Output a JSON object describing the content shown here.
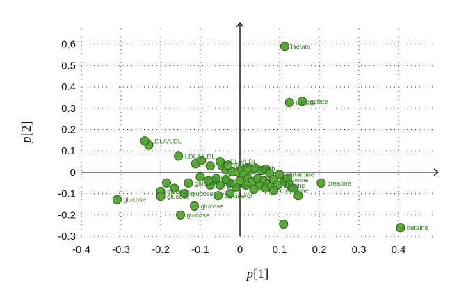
{
  "chart_data": {
    "type": "scatter",
    "xlabel": {
      "italic": "p",
      "bracket": "[1]"
    },
    "ylabel": {
      "italic": "p",
      "bracket": "[2]"
    },
    "xlim": [
      -0.4,
      0.5
    ],
    "ylim": [
      -0.3,
      0.7
    ],
    "x_ticks": [
      "-0.4",
      "-0.3",
      "-0.2",
      "-0.1",
      "0",
      "0.1",
      "0.2",
      "0.3",
      "0.4"
    ],
    "y_ticks": [
      "-0.3",
      "-0.2",
      "-0.1",
      "0",
      "0.1",
      "0.2",
      "0.3",
      "0.4",
      "0.5",
      "0.6"
    ],
    "grid": true,
    "point_color": "#5aa83a",
    "point_edge_color": "#2f6b1c",
    "label_color": "#2e7d1e",
    "labeled_points": [
      {
        "x": 0.113,
        "y": 0.59,
        "label": "lactate"
      },
      {
        "x": 0.157,
        "y": 0.333,
        "label": "lactate"
      },
      {
        "x": 0.125,
        "y": 0.327,
        "label": "lactate"
      },
      {
        "x": -0.24,
        "y": 0.147,
        "label": "LDL/VLDL"
      },
      {
        "x": -0.155,
        "y": 0.075,
        "label": "LDL/VLDL"
      },
      {
        "x": -0.05,
        "y": 0.05,
        "label": "LDL/VLDL"
      },
      {
        "x": -0.03,
        "y": 0.033,
        "label": "lactate"
      },
      {
        "x": 0.02,
        "y": 0.02,
        "label": "Dimeth"
      },
      {
        "x": -0.1,
        "y": -0.022,
        "label": "glucose"
      },
      {
        "x": -0.13,
        "y": -0.05,
        "label": "glucose"
      },
      {
        "x": -0.08,
        "y": -0.04,
        "label": "glucose"
      },
      {
        "x": -0.05,
        "y": -0.06,
        "label": "glucose"
      },
      {
        "x": -0.2,
        "y": -0.09,
        "label": "glucose"
      },
      {
        "x": -0.14,
        "y": -0.1,
        "label": "glucose"
      },
      {
        "x": -0.2,
        "y": -0.113,
        "label": "glucose"
      },
      {
        "x": -0.055,
        "y": -0.11,
        "label": "glycine/gl"
      },
      {
        "x": -0.31,
        "y": -0.128,
        "label": "glucose"
      },
      {
        "x": -0.115,
        "y": -0.158,
        "label": "glucose"
      },
      {
        "x": -0.15,
        "y": -0.2,
        "label": "glucose"
      },
      {
        "x": 0.1,
        "y": -0.01,
        "label": "glutamine"
      },
      {
        "x": 0.085,
        "y": -0.035,
        "label": "glutamine"
      },
      {
        "x": 0.095,
        "y": -0.06,
        "label": "alanine"
      },
      {
        "x": 0.085,
        "y": -0.085,
        "label": "creatinine"
      },
      {
        "x": 0.205,
        "y": -0.05,
        "label": "creatine"
      },
      {
        "x": 0.405,
        "y": -0.26,
        "label": "betaine"
      }
    ],
    "other_points": [
      {
        "x": -0.23,
        "y": 0.127
      },
      {
        "x": -0.112,
        "y": 0.04
      },
      {
        "x": -0.097,
        "y": 0.055
      },
      {
        "x": -0.075,
        "y": 0.03
      },
      {
        "x": -0.045,
        "y": 0.03
      },
      {
        "x": -0.035,
        "y": 0.01
      },
      {
        "x": -0.02,
        "y": 0.002
      },
      {
        "x": -0.005,
        "y": 0.0
      },
      {
        "x": 0.005,
        "y": 0.015
      },
      {
        "x": 0.03,
        "y": 0.01
      },
      {
        "x": 0.04,
        "y": 0.018
      },
      {
        "x": 0.055,
        "y": 0.008
      },
      {
        "x": 0.065,
        "y": 0.015
      },
      {
        "x": 0.075,
        "y": -0.005
      },
      {
        "x": 0.01,
        "y": -0.01
      },
      {
        "x": 0.02,
        "y": -0.03
      },
      {
        "x": 0.03,
        "y": -0.045
      },
      {
        "x": 0.045,
        "y": -0.03
      },
      {
        "x": 0.06,
        "y": -0.04
      },
      {
        "x": 0.07,
        "y": -0.055
      },
      {
        "x": 0.05,
        "y": -0.065
      },
      {
        "x": 0.035,
        "y": -0.08
      },
      {
        "x": 0.065,
        "y": -0.075
      },
      {
        "x": 0.08,
        "y": -0.065
      },
      {
        "x": 0.11,
        "y": -0.045
      },
      {
        "x": 0.12,
        "y": -0.03
      },
      {
        "x": 0.125,
        "y": -0.06
      },
      {
        "x": 0.135,
        "y": -0.075
      },
      {
        "x": 0.015,
        "y": -0.06
      },
      {
        "x": 0.0,
        "y": -0.04
      },
      {
        "x": -0.01,
        "y": -0.07
      },
      {
        "x": -0.025,
        "y": -0.05
      },
      {
        "x": -0.035,
        "y": -0.035
      },
      {
        "x": -0.06,
        "y": -0.03
      },
      {
        "x": -0.185,
        "y": -0.05
      },
      {
        "x": -0.165,
        "y": -0.075
      },
      {
        "x": -0.075,
        "y": -0.06
      },
      {
        "x": -0.025,
        "y": -0.1
      },
      {
        "x": 0.147,
        "y": -0.11
      },
      {
        "x": 0.11,
        "y": -0.243
      }
    ]
  }
}
